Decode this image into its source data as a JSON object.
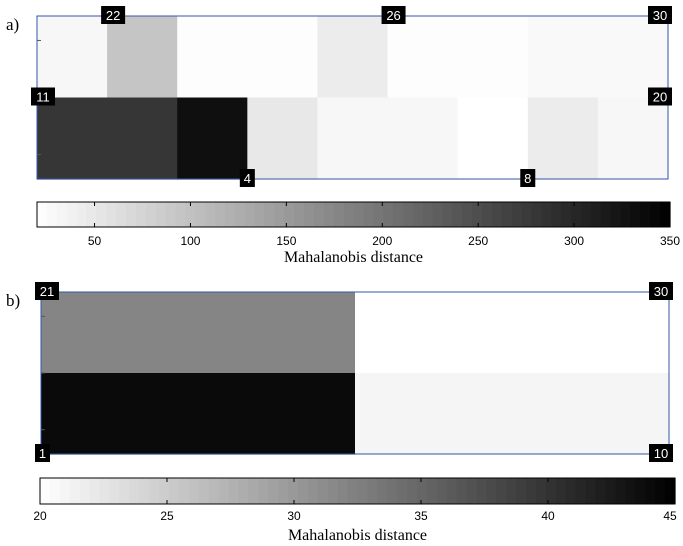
{
  "chart_data": [
    {
      "type": "heatmap",
      "panel_label": "a)",
      "rows": 2,
      "cols": 9,
      "values": [
        [
          30,
          95,
          23,
          23,
          45,
          23,
          23,
          28,
          28
        ],
        [
          280,
          280,
          330,
          50,
          30,
          30,
          20,
          45,
          30
        ]
      ],
      "node_labels": [
        {
          "text": "22",
          "row": 0,
          "col": 1,
          "anchor": "top-left"
        },
        {
          "text": "26",
          "row": 0,
          "col": 5,
          "anchor": "top-left"
        },
        {
          "text": "30",
          "row": 0,
          "col": 9,
          "anchor": "top-right"
        },
        {
          "text": "11",
          "row": 1,
          "col": 0,
          "anchor": "top-left"
        },
        {
          "text": "20",
          "row": 1,
          "col": 9,
          "anchor": "top-right"
        },
        {
          "text": "4",
          "row": 2,
          "col": 3,
          "anchor": "bottom"
        },
        {
          "text": "8",
          "row": 2,
          "col": 7,
          "anchor": "bottom"
        }
      ],
      "colorbar": {
        "min": 20,
        "max": 350,
        "ticks": [
          50,
          100,
          150,
          200,
          250,
          300,
          350
        ],
        "tick_labels": [
          "50",
          "100",
          "150",
          "200",
          "250",
          "300",
          "350"
        ],
        "label": "Mahalanobis distance",
        "colormap": "white-to-black"
      }
    },
    {
      "type": "heatmap",
      "panel_label": "b)",
      "rows": 2,
      "cols": 2,
      "values": [
        [
          32,
          20
        ],
        [
          44,
          21
        ]
      ],
      "node_labels": [
        {
          "text": "21",
          "row": 0,
          "col": 0,
          "anchor": "top-left"
        },
        {
          "text": "30",
          "row": 0,
          "col": 2,
          "anchor": "top-right"
        },
        {
          "text": "1",
          "row": 2,
          "col": 0,
          "anchor": "bottom-left"
        },
        {
          "text": "10",
          "row": 2,
          "col": 2,
          "anchor": "bottom-right"
        }
      ],
      "colorbar": {
        "min": 20,
        "max": 45,
        "ticks": [
          20,
          25,
          30,
          35,
          40,
          45
        ],
        "tick_labels": [
          "20",
          "25",
          "30",
          "35",
          "40",
          "45"
        ],
        "label": "Mahalanobis distance",
        "colormap": "white-to-black"
      }
    }
  ],
  "colors": {
    "frame": "#3355aa",
    "label_bg": "#000000",
    "label_fg": "#ffffff"
  }
}
